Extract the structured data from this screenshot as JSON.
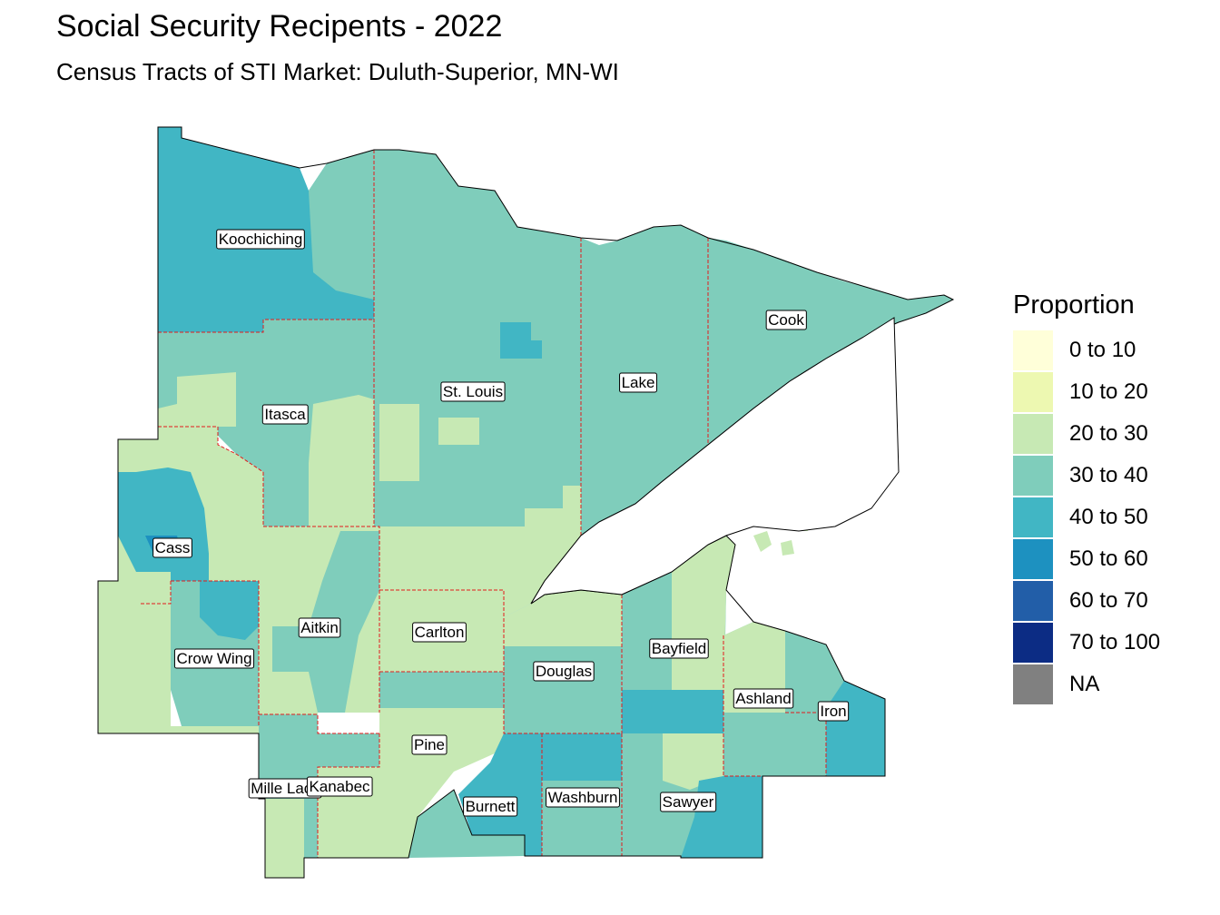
{
  "title": "Social Security Recipents - 2022",
  "subtitle": "Census Tracts of STI Market: Duluth-Superior, MN-WI",
  "legend": {
    "title": "Proportion",
    "items": [
      {
        "label": "0 to 10",
        "color": "#ffffd9"
      },
      {
        "label": "10 to 20",
        "color": "#edf8b1"
      },
      {
        "label": "20 to 30",
        "color": "#c7e9b4"
      },
      {
        "label": "30 to 40",
        "color": "#7fcdbb"
      },
      {
        "label": "40 to 50",
        "color": "#41b6c4"
      },
      {
        "label": "50 to 60",
        "color": "#1d91c0"
      },
      {
        "label": "60 to 70",
        "color": "#225ea8"
      },
      {
        "label": "70 to 100",
        "color": "#0c2c84"
      },
      {
        "label": "NA",
        "color": "#808080"
      }
    ]
  },
  "counties": [
    {
      "name": "Koochiching"
    },
    {
      "name": "Cook"
    },
    {
      "name": "St. Louis"
    },
    {
      "name": "Lake"
    },
    {
      "name": "Itasca"
    },
    {
      "name": "Cass"
    },
    {
      "name": "Aitkin"
    },
    {
      "name": "Carlton"
    },
    {
      "name": "Crow Wing"
    },
    {
      "name": "Douglas"
    },
    {
      "name": "Bayfield"
    },
    {
      "name": "Ashland"
    },
    {
      "name": "Iron"
    },
    {
      "name": "Pine"
    },
    {
      "name": "Mille Lacs"
    },
    {
      "name": "Kanabec"
    },
    {
      "name": "Burnett"
    },
    {
      "name": "Washburn"
    },
    {
      "name": "Sawyer"
    }
  ]
}
